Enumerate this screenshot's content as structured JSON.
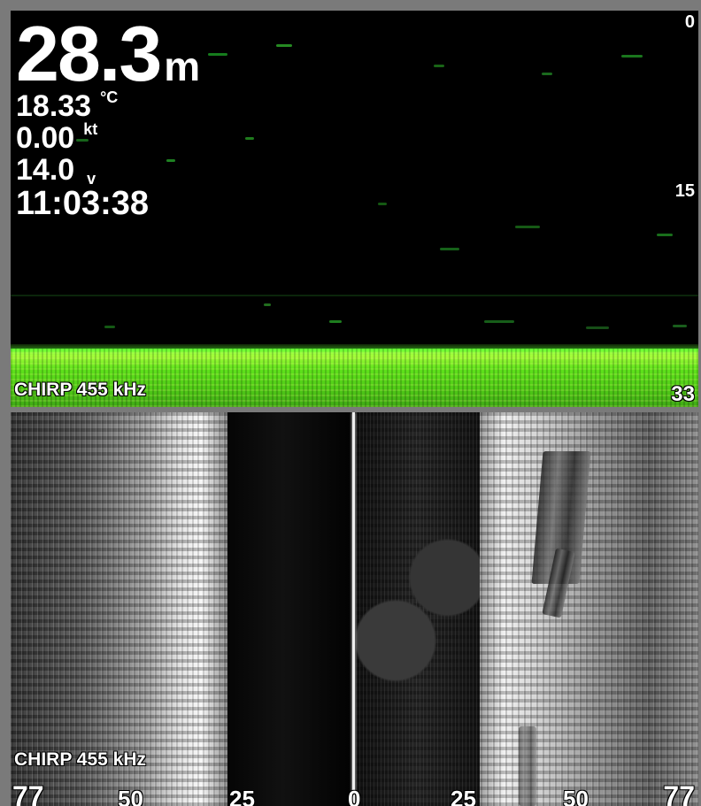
{
  "readouts": {
    "depth": "28.3",
    "depth_unit": "m",
    "temperature": "18.33",
    "temperature_unit": "°C",
    "speed": "0.00",
    "speed_unit": "kt",
    "voltage": "14.0",
    "voltage_unit": "v",
    "time": "11:03:38"
  },
  "top_sonar": {
    "depth_scale": [
      "0",
      "15",
      "33"
    ],
    "mode_label": "CHIRP 455 kHz"
  },
  "side_sonar": {
    "mode_label": "CHIRP 455 kHz",
    "range_scale": [
      "77",
      "50",
      "25",
      "0",
      "25",
      "50",
      "77"
    ]
  },
  "colors": {
    "sonar_bottom_green": "#5eff32",
    "sonar_background": "#000000",
    "sidescan_gray": "#dddddd",
    "frame_gray": "#7a7a7a"
  }
}
